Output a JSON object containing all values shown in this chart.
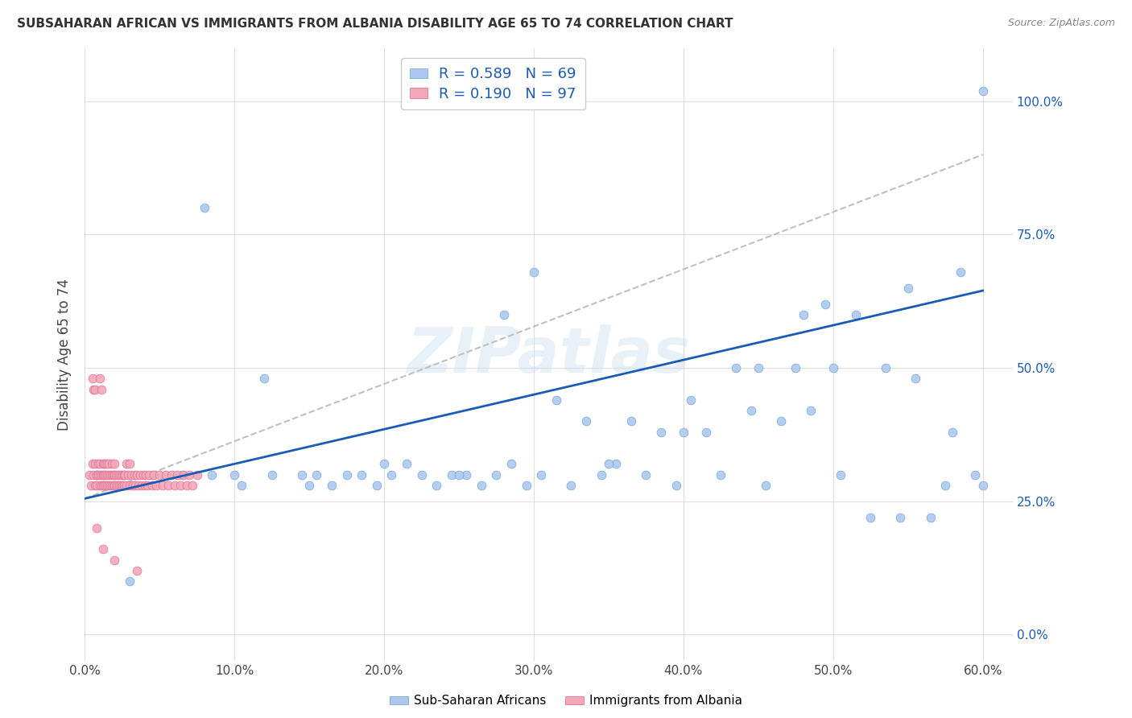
{
  "title": "SUBSAHARAN AFRICAN VS IMMIGRANTS FROM ALBANIA DISABILITY AGE 65 TO 74 CORRELATION CHART",
  "source": "Source: ZipAtlas.com",
  "ylabel": "Disability Age 65 to 74",
  "blue_R": 0.589,
  "blue_N": 69,
  "pink_R": 0.19,
  "pink_N": 97,
  "blue_color": "#adc8f0",
  "pink_color": "#f4a8b8",
  "blue_edge_color": "#7aaad8",
  "pink_edge_color": "#e07898",
  "blue_line_color": "#1a5cb5",
  "gray_dash_color": "#c0c0c0",
  "legend_label_blue": "Sub-Saharan Africans",
  "legend_label_pink": "Immigrants from Albania",
  "watermark": "ZIPatlas",
  "xlim": [
    0.0,
    0.62
  ],
  "ylim": [
    -0.05,
    1.1
  ],
  "xticks": [
    0.0,
    0.1,
    0.2,
    0.3,
    0.4,
    0.5,
    0.6
  ],
  "xticklabels": [
    "0.0%",
    "10.0%",
    "20.0%",
    "30.0%",
    "40.0%",
    "50.0%",
    "60.0%"
  ],
  "yticks": [
    0.0,
    0.25,
    0.5,
    0.75,
    1.0
  ],
  "yticklabels": [
    "0.0%",
    "25.0%",
    "50.0%",
    "75.0%",
    "100.0%"
  ],
  "blue_x": [
    0.045,
    0.065,
    0.085,
    0.105,
    0.125,
    0.145,
    0.155,
    0.165,
    0.175,
    0.185,
    0.195,
    0.205,
    0.215,
    0.225,
    0.235,
    0.245,
    0.255,
    0.265,
    0.275,
    0.285,
    0.295,
    0.305,
    0.315,
    0.325,
    0.335,
    0.345,
    0.355,
    0.365,
    0.375,
    0.385,
    0.395,
    0.405,
    0.415,
    0.425,
    0.435,
    0.445,
    0.455,
    0.465,
    0.475,
    0.485,
    0.495,
    0.505,
    0.515,
    0.525,
    0.535,
    0.545,
    0.555,
    0.565,
    0.575,
    0.585,
    0.595,
    0.1,
    0.15,
    0.2,
    0.25,
    0.3,
    0.35,
    0.4,
    0.45,
    0.5,
    0.55,
    0.6,
    0.6,
    0.08,
    0.12,
    0.28,
    0.48,
    0.58,
    0.03
  ],
  "blue_y": [
    0.3,
    0.3,
    0.3,
    0.28,
    0.3,
    0.3,
    0.3,
    0.28,
    0.3,
    0.3,
    0.28,
    0.3,
    0.32,
    0.3,
    0.28,
    0.3,
    0.3,
    0.28,
    0.3,
    0.32,
    0.28,
    0.3,
    0.44,
    0.28,
    0.4,
    0.3,
    0.32,
    0.4,
    0.3,
    0.38,
    0.28,
    0.44,
    0.38,
    0.3,
    0.5,
    0.42,
    0.28,
    0.4,
    0.5,
    0.42,
    0.62,
    0.3,
    0.6,
    0.22,
    0.5,
    0.22,
    0.48,
    0.22,
    0.28,
    0.68,
    0.3,
    0.3,
    0.28,
    0.32,
    0.3,
    0.68,
    0.32,
    0.38,
    0.5,
    0.5,
    0.65,
    0.28,
    1.02,
    0.8,
    0.48,
    0.6,
    0.6,
    0.38,
    0.1
  ],
  "pink_x": [
    0.003,
    0.004,
    0.005,
    0.005,
    0.006,
    0.006,
    0.007,
    0.007,
    0.007,
    0.008,
    0.008,
    0.008,
    0.009,
    0.009,
    0.01,
    0.01,
    0.01,
    0.01,
    0.011,
    0.011,
    0.011,
    0.012,
    0.012,
    0.012,
    0.013,
    0.013,
    0.013,
    0.014,
    0.014,
    0.014,
    0.015,
    0.015,
    0.015,
    0.016,
    0.016,
    0.016,
    0.017,
    0.017,
    0.018,
    0.018,
    0.018,
    0.019,
    0.019,
    0.02,
    0.02,
    0.02,
    0.021,
    0.021,
    0.022,
    0.022,
    0.023,
    0.023,
    0.024,
    0.024,
    0.025,
    0.025,
    0.026,
    0.026,
    0.027,
    0.028,
    0.028,
    0.029,
    0.03,
    0.03,
    0.031,
    0.032,
    0.033,
    0.034,
    0.035,
    0.036,
    0.037,
    0.038,
    0.039,
    0.04,
    0.041,
    0.042,
    0.043,
    0.045,
    0.046,
    0.048,
    0.05,
    0.052,
    0.054,
    0.056,
    0.058,
    0.06,
    0.062,
    0.064,
    0.066,
    0.068,
    0.07,
    0.072,
    0.075,
    0.008,
    0.012,
    0.02,
    0.035
  ],
  "pink_y": [
    0.3,
    0.28,
    0.32,
    0.48,
    0.3,
    0.46,
    0.28,
    0.32,
    0.46,
    0.3,
    0.3,
    0.28,
    0.32,
    0.3,
    0.3,
    0.28,
    0.32,
    0.48,
    0.3,
    0.28,
    0.46,
    0.3,
    0.28,
    0.32,
    0.3,
    0.28,
    0.32,
    0.28,
    0.3,
    0.32,
    0.3,
    0.28,
    0.32,
    0.3,
    0.28,
    0.32,
    0.3,
    0.28,
    0.3,
    0.28,
    0.32,
    0.3,
    0.28,
    0.3,
    0.28,
    0.32,
    0.3,
    0.28,
    0.3,
    0.28,
    0.3,
    0.28,
    0.3,
    0.28,
    0.3,
    0.28,
    0.3,
    0.28,
    0.3,
    0.28,
    0.32,
    0.3,
    0.28,
    0.32,
    0.3,
    0.28,
    0.3,
    0.28,
    0.3,
    0.28,
    0.3,
    0.28,
    0.3,
    0.28,
    0.3,
    0.28,
    0.3,
    0.28,
    0.3,
    0.28,
    0.3,
    0.28,
    0.3,
    0.28,
    0.3,
    0.28,
    0.3,
    0.28,
    0.3,
    0.28,
    0.3,
    0.28,
    0.3,
    0.2,
    0.16,
    0.14,
    0.12
  ],
  "blue_line_x": [
    0.0,
    0.6
  ],
  "blue_line_y": [
    0.255,
    0.645
  ],
  "gray_line_x": [
    0.0,
    0.6
  ],
  "gray_line_y": [
    0.255,
    0.9
  ]
}
